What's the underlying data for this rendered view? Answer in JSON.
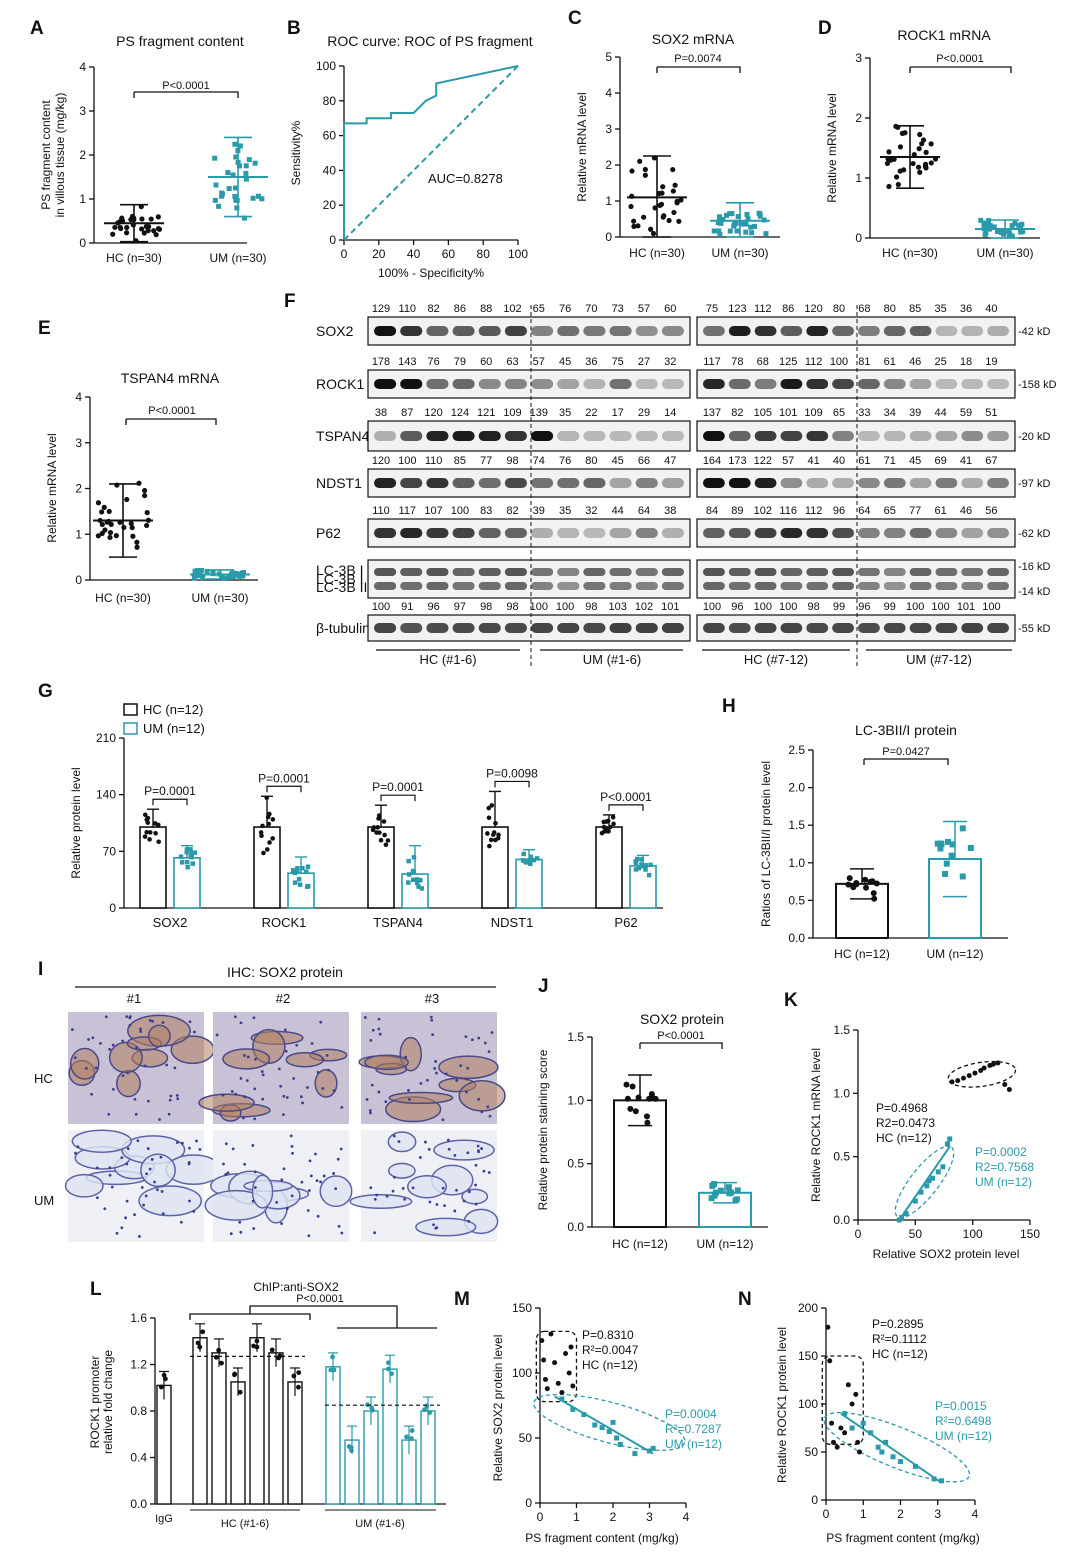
{
  "colors": {
    "hc": "#111111",
    "um": "#2a9aaa"
  },
  "panels": {
    "A": {
      "letter": "A",
      "title": "PS fragment content",
      "ylabel1": "PS fragment content",
      "ylabel2": "in villous tissue (mg/kg)",
      "pvalue": "P<0.0001",
      "groups": [
        "HC (n=30)",
        "UM (n=30)"
      ],
      "yticks": [
        "0",
        "1",
        "2",
        "3",
        "4"
      ]
    },
    "B": {
      "letter": "B",
      "title": "ROC curve: ROC of PS fragment",
      "ylabel": "Sensitivity%",
      "xlabel": "100% - Specificity%",
      "auc": "AUC=0.8278",
      "yticks": [
        "0",
        "20",
        "40",
        "60",
        "80",
        "100"
      ],
      "xticks": [
        "0",
        "20",
        "40",
        "60",
        "80",
        "100"
      ]
    },
    "C": {
      "letter": "C",
      "title": "SOX2 mRNA",
      "ylabel": "Relative mRNA level",
      "pvalue": "P=0.0074",
      "groups": [
        "HC (n=30)",
        "UM (n=30)"
      ],
      "yticks": [
        "0",
        "1",
        "2",
        "3",
        "4",
        "5"
      ]
    },
    "D": {
      "letter": "D",
      "title": "ROCK1 mRNA",
      "ylabel": "Relative mRNA level",
      "pvalue": "P<0.0001",
      "groups": [
        "HC (n=30)",
        "UM (n=30)"
      ],
      "yticks": [
        "0",
        "1",
        "2",
        "3"
      ]
    },
    "E": {
      "letter": "E",
      "title": "TSPAN4 mRNA",
      "ylabel": "Relative mRNA level",
      "pvalue": "P<0.0001",
      "groups": [
        "HC (n=30)",
        "UM (n=30)"
      ],
      "yticks": [
        "0",
        "1",
        "2",
        "3",
        "4"
      ]
    },
    "F": {
      "letter": "F",
      "rows": [
        {
          "label": "SOX2",
          "kd": "-42 kD",
          "left": [
            "129",
            "110",
            "82",
            "86",
            "88",
            "102",
            "65",
            "76",
            "70",
            "73",
            "57",
            "60"
          ],
          "right": [
            "75",
            "123",
            "112",
            "86",
            "120",
            "80",
            "68",
            "80",
            "85",
            "35",
            "36",
            "40"
          ]
        },
        {
          "label": "ROCK1",
          "kd": "-158 kD",
          "left": [
            "178",
            "143",
            "76",
            "79",
            "60",
            "63",
            "57",
            "45",
            "36",
            "75",
            "27",
            "32"
          ],
          "right": [
            "117",
            "78",
            "68",
            "125",
            "112",
            "100",
            "81",
            "61",
            "46",
            "25",
            "18",
            "19"
          ]
        },
        {
          "label": "TSPAN4",
          "kd": "-20 kD",
          "left": [
            "38",
            "87",
            "120",
            "124",
            "121",
            "109",
            "139",
            "35",
            "22",
            "17",
            "29",
            "14"
          ],
          "right": [
            "137",
            "82",
            "105",
            "101",
            "109",
            "65",
            "33",
            "34",
            "39",
            "44",
            "59",
            "51"
          ]
        },
        {
          "label": "NDST1",
          "kd": "-97 kD",
          "left": [
            "120",
            "100",
            "110",
            "85",
            "77",
            "98",
            "74",
            "76",
            "80",
            "45",
            "66",
            "47"
          ],
          "right": [
            "164",
            "173",
            "122",
            "57",
            "41",
            "40",
            "61",
            "71",
            "45",
            "69",
            "41",
            "67"
          ]
        },
        {
          "label": "P62",
          "kd": "-62 kD",
          "left": [
            "110",
            "117",
            "107",
            "100",
            "83",
            "82",
            "39",
            "35",
            "32",
            "44",
            "64",
            "38"
          ],
          "right": [
            "84",
            "89",
            "102",
            "116",
            "112",
            "96",
            "64",
            "65",
            "77",
            "61",
            "46",
            "56"
          ]
        },
        {
          "label": "LC-3B I",
          "label2": "LC-3B II",
          "kd": "-16 kD",
          "kd2": "-14 kD",
          "left": [],
          "right": []
        },
        {
          "label": "β-tubulin",
          "kd": "-55 kD",
          "left": [
            "100",
            "91",
            "96",
            "97",
            "98",
            "98",
            "100",
            "100",
            "98",
            "103",
            "102",
            "101"
          ],
          "right": [
            "100",
            "96",
            "100",
            "100",
            "98",
            "99",
            "96",
            "99",
            "100",
            "100",
            "101",
            "100"
          ]
        }
      ],
      "groups": [
        "HC (#1-6)",
        "UM (#1-6)",
        "HC (#7-12)",
        "UM (#7-12)"
      ]
    },
    "G": {
      "letter": "G",
      "legend": [
        "HC (n=12)",
        "UM (n=12)"
      ],
      "ylabel": "Relative protein level",
      "yticks": [
        "0",
        "70",
        "140",
        "210"
      ],
      "categories": [
        "SOX2",
        "ROCK1",
        "TSPAN4",
        "NDST1",
        "P62"
      ],
      "pvalues": [
        "P=0.0001",
        "P=0.0001",
        "P=0.0001",
        "P=0.0098",
        "P<0.0001"
      ]
    },
    "H": {
      "letter": "H",
      "title": "LC-3BII/I protein",
      "ylabel": "Ratios of LC-3BII/I protein level",
      "pvalue": "P=0.0427",
      "groups": [
        "HC (n=12)",
        "UM (n=12)"
      ],
      "yticks": [
        "0.0",
        "0.5",
        "1.0",
        "1.5",
        "2.0",
        "2.5"
      ]
    },
    "I": {
      "letter": "I",
      "title": "IHC: SOX2 protein",
      "cols": [
        "#1",
        "#2",
        "#3"
      ],
      "rows": [
        "HC",
        "UM"
      ]
    },
    "J": {
      "letter": "J",
      "title": "SOX2 protein",
      "ylabel": "Relative protein staining score",
      "pvalue": "P<0.0001",
      "groups": [
        "HC (n=12)",
        "UM (n=12)"
      ],
      "yticks": [
        "0.0",
        "0.5",
        "1.0",
        "1.5"
      ]
    },
    "K": {
      "letter": "K",
      "ylabel": "Relative ROCK1 mRNA level",
      "xlabel": "Relative SOX2 protein level",
      "yticks": [
        "0.0",
        "0.5",
        "1.0",
        "1.5"
      ],
      "xticks": [
        "0",
        "50",
        "100",
        "150"
      ],
      "hc": [
        "P=0.4968",
        "R2=0.0473",
        "HC (n=12)"
      ],
      "um": [
        "P=0.0002",
        "R2=0.7568",
        "UM (n=12)"
      ]
    },
    "L": {
      "letter": "L",
      "title": "ChIP:anti-SOX2",
      "ylabel1": "ROCK1 promoter",
      "ylabel2": "relative fold change",
      "pvalue": "P<0.0001",
      "yticks": [
        "0.0",
        "0.4",
        "0.8",
        "1.2",
        "1.6"
      ],
      "groups": [
        "IgG",
        "HC (#1-6)",
        "UM (#1-6)"
      ]
    },
    "M": {
      "letter": "M",
      "ylabel": "Relative SOX2 protein level",
      "xlabel": "PS fragment content (mg/kg)",
      "yticks": [
        "0",
        "50",
        "100",
        "150"
      ],
      "xticks": [
        "0",
        "1",
        "2",
        "3",
        "4"
      ],
      "hc": [
        "P=0.8310",
        "R²=0.0047",
        "HC (n=12)"
      ],
      "um": [
        "P=0.0004",
        "R²=0.7287",
        "UM (n=12)"
      ]
    },
    "N": {
      "letter": "N",
      "ylabel": "Relative ROCK1 protein level",
      "xlabel": "PS fragment content (mg/kg)",
      "yticks": [
        "0",
        "50",
        "100",
        "150",
        "200"
      ],
      "xticks": [
        "0",
        "1",
        "2",
        "3",
        "4"
      ],
      "hc": [
        "P=0.2895",
        "R²=0.1112",
        "HC (n=12)"
      ],
      "um": [
        "P=0.0015",
        "R²=0.6498",
        "UM (n=12)"
      ]
    }
  },
  "chart_data": [
    {
      "panel": "A",
      "type": "scatter",
      "categories": [
        "HC (n=30)",
        "UM (n=30)"
      ],
      "series": [
        {
          "name": "HC (n=30)",
          "mean": 0.45,
          "sd": 0.42
        },
        {
          "name": "UM (n=30)",
          "mean": 1.5,
          "sd": 0.9
        }
      ],
      "ylim": [
        0,
        4
      ]
    },
    {
      "panel": "B",
      "type": "line",
      "x": [
        0,
        0,
        13,
        13,
        27,
        27,
        40,
        47,
        53,
        53,
        100
      ],
      "y": [
        0,
        67,
        67,
        70,
        70,
        73,
        73,
        80,
        83,
        90,
        100
      ],
      "ylim": [
        0,
        100
      ],
      "xlim": [
        0,
        100
      ]
    },
    {
      "panel": "C",
      "type": "scatter",
      "categories": [
        "HC (n=30)",
        "UM (n=30)"
      ],
      "series": [
        {
          "name": "HC (n=30)",
          "mean": 1.1,
          "sd": 1.15
        },
        {
          "name": "UM (n=30)",
          "mean": 0.45,
          "sd": 0.5
        }
      ],
      "ylim": [
        0,
        5
      ]
    },
    {
      "panel": "D",
      "type": "scatter",
      "categories": [
        "HC (n=30)",
        "UM (n=30)"
      ],
      "series": [
        {
          "name": "HC (n=30)",
          "mean": 1.35,
          "sd": 0.52
        },
        {
          "name": "UM (n=30)",
          "mean": 0.15,
          "sd": 0.15
        }
      ],
      "ylim": [
        0,
        3
      ]
    },
    {
      "panel": "E",
      "type": "scatter",
      "categories": [
        "HC (n=30)",
        "UM (n=30)"
      ],
      "series": [
        {
          "name": "HC (n=30)",
          "mean": 1.3,
          "sd": 0.8
        },
        {
          "name": "UM (n=30)",
          "mean": 0.12,
          "sd": 0.1
        }
      ],
      "ylim": [
        0,
        4
      ]
    },
    {
      "panel": "G",
      "type": "bar",
      "categories": [
        "SOX2",
        "ROCK1",
        "TSPAN4",
        "NDST1",
        "P62"
      ],
      "series": [
        {
          "name": "HC (n=12)",
          "values": [
            100,
            100,
            100,
            100,
            100
          ],
          "sd": [
            22,
            38,
            27,
            44,
            15
          ]
        },
        {
          "name": "UM (n=12)",
          "values": [
            62,
            43,
            42,
            60,
            52
          ],
          "sd": [
            15,
            20,
            35,
            12,
            13
          ]
        }
      ],
      "ylim": [
        0,
        210
      ]
    },
    {
      "panel": "H",
      "type": "bar",
      "categories": [
        "HC (n=12)",
        "UM (n=12)"
      ],
      "values": [
        0.72,
        1.05
      ],
      "sd": [
        0.2,
        0.5
      ],
      "ylim": [
        0,
        2.5
      ]
    },
    {
      "panel": "J",
      "type": "bar",
      "categories": [
        "HC (n=12)",
        "UM (n=12)"
      ],
      "values": [
        1.0,
        0.27
      ],
      "sd": [
        0.2,
        0.08
      ],
      "ylim": [
        0,
        1.5
      ]
    },
    {
      "panel": "K",
      "type": "scatter",
      "xlim": [
        0,
        150
      ],
      "ylim": [
        0,
        1.5
      ],
      "series": [
        {
          "name": "HC (n=12)",
          "x": [
            82,
            87,
            92,
            97,
            102,
            107,
            110,
            115,
            118,
            122,
            128,
            132
          ],
          "y": [
            1.09,
            1.1,
            1.12,
            1.14,
            1.16,
            1.18,
            1.2,
            1.22,
            1.23,
            1.24,
            1.07,
            1.03
          ]
        },
        {
          "name": "UM (n=12)",
          "x": [
            36,
            38,
            42,
            50,
            55,
            60,
            62,
            65,
            70,
            74,
            78,
            80
          ],
          "y": [
            0.0,
            0.02,
            0.05,
            0.15,
            0.22,
            0.27,
            0.31,
            0.33,
            0.38,
            0.42,
            0.6,
            0.64
          ]
        }
      ]
    },
    {
      "panel": "L",
      "type": "bar",
      "categories": [
        "IgG",
        "HC1",
        "HC2",
        "HC3",
        "HC4",
        "HC5",
        "HC6",
        "UM1",
        "UM2",
        "UM3",
        "UM4",
        "UM5",
        "UM6"
      ],
      "values": [
        1.02,
        1.43,
        1.3,
        1.05,
        1.43,
        1.3,
        1.05,
        1.18,
        0.55,
        0.8,
        1.16,
        0.55,
        0.8
      ],
      "ylim": [
        0,
        1.6
      ]
    },
    {
      "panel": "M",
      "type": "scatter",
      "xlim": [
        0,
        4
      ],
      "ylim": [
        0,
        150
      ],
      "series": [
        {
          "name": "HC (n=12)",
          "x": [
            0.05,
            0.1,
            0.15,
            0.2,
            0.3,
            0.4,
            0.5,
            0.6,
            0.7,
            0.8,
            0.85,
            0.9
          ],
          "y": [
            125,
            110,
            95,
            88,
            130,
            108,
            92,
            85,
            115,
            100,
            120,
            90
          ]
        },
        {
          "name": "UM (n=12)",
          "x": [
            0.6,
            0.9,
            1.2,
            1.5,
            1.7,
            1.9,
            2.0,
            2.1,
            2.2,
            2.6,
            3.0,
            3.1
          ],
          "y": [
            80,
            72,
            68,
            60,
            58,
            55,
            62,
            50,
            45,
            38,
            40,
            42
          ]
        }
      ]
    },
    {
      "panel": "N",
      "type": "scatter",
      "xlim": [
        0,
        4
      ],
      "ylim": [
        0,
        200
      ],
      "series": [
        {
          "name": "HC (n=12)",
          "x": [
            0.05,
            0.1,
            0.15,
            0.2,
            0.3,
            0.4,
            0.5,
            0.6,
            0.7,
            0.8,
            0.85,
            0.9
          ],
          "y": [
            180,
            145,
            80,
            60,
            55,
            75,
            70,
            120,
            100,
            110,
            60,
            50
          ]
        },
        {
          "name": "UM (n=12)",
          "x": [
            0.5,
            0.7,
            1.0,
            1.2,
            1.4,
            1.5,
            1.6,
            1.8,
            2.0,
            2.4,
            2.9,
            3.1
          ],
          "y": [
            90,
            75,
            80,
            70,
            55,
            50,
            60,
            45,
            40,
            35,
            22,
            20
          ]
        }
      ]
    }
  ]
}
